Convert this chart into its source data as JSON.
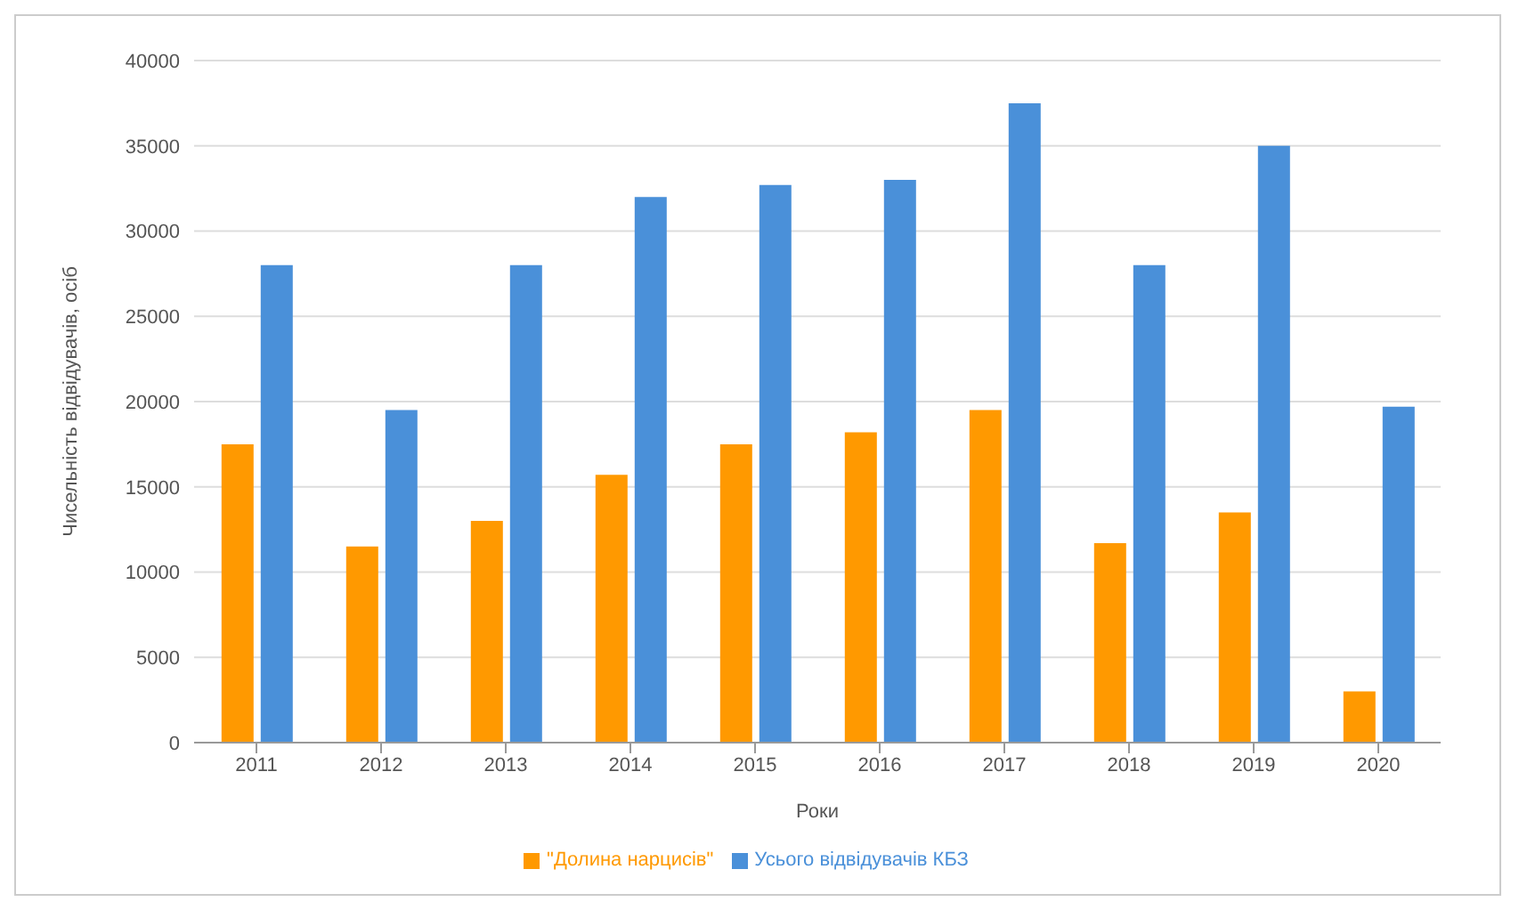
{
  "chart_data": {
    "type": "bar",
    "xlabel": "Роки",
    "ylabel": "Чисельність відвідувачів, осіб",
    "categories": [
      "2011",
      "2012",
      "2013",
      "2014",
      "2015",
      "2016",
      "2017",
      "2018",
      "2019",
      "2020"
    ],
    "series": [
      {
        "name": "\"Долина нарцисів\"",
        "color": "#ff9900",
        "values": [
          17500,
          11500,
          13000,
          15700,
          17500,
          18200,
          19500,
          11700,
          13500,
          3000
        ]
      },
      {
        "name": "Усього відвідувачів КБЗ",
        "color": "#4a90d9",
        "values": [
          28000,
          19500,
          28000,
          32000,
          32700,
          33000,
          37500,
          28000,
          35000,
          19700
        ]
      }
    ],
    "ylim": [
      0,
      40000
    ],
    "yticks": [
      0,
      5000,
      10000,
      15000,
      20000,
      25000,
      30000,
      35000,
      40000
    ],
    "grid": "y",
    "legend": "bottom"
  }
}
